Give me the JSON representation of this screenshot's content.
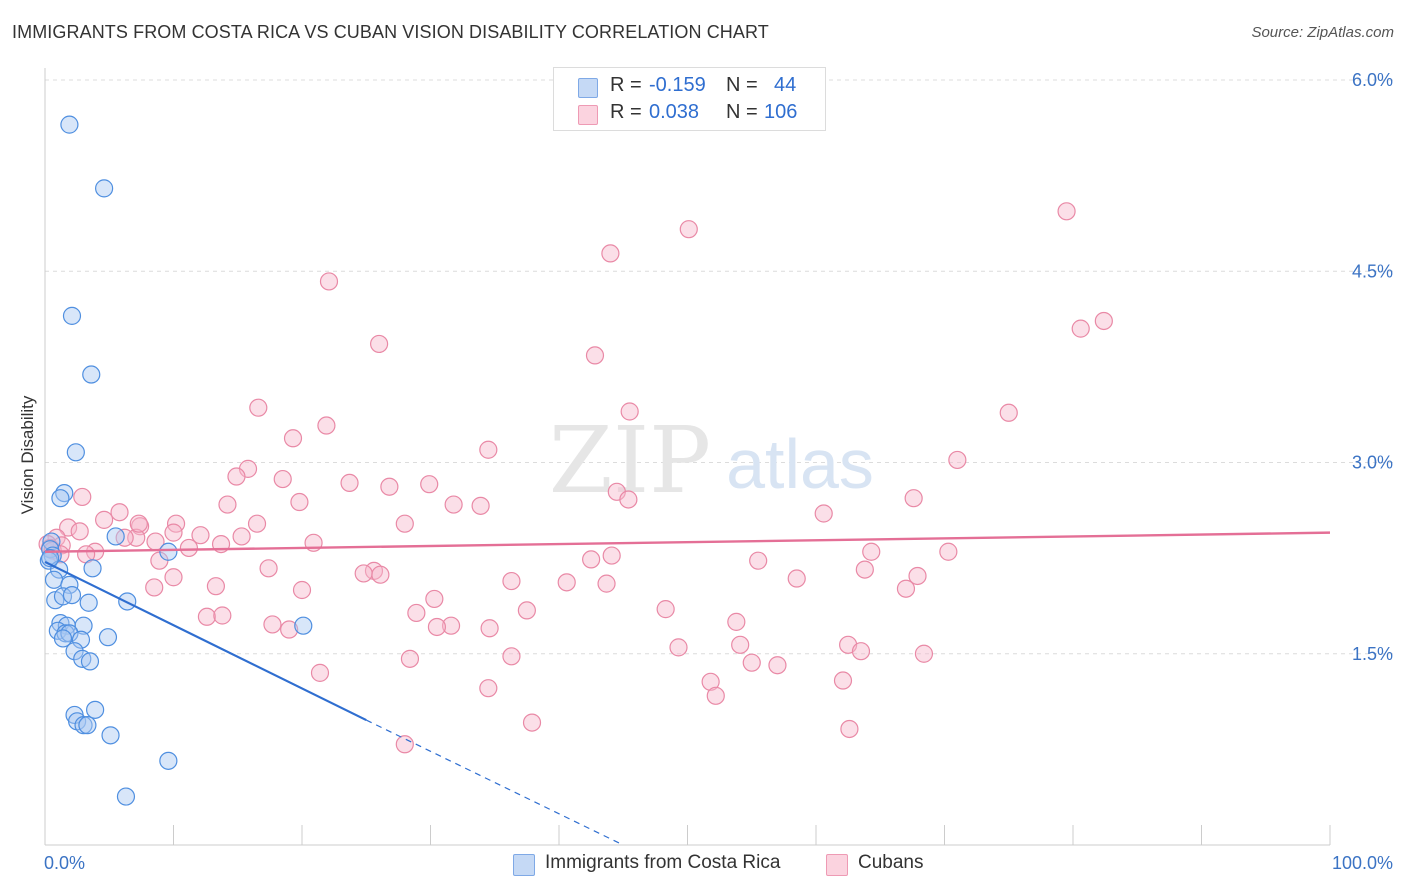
{
  "header": {
    "title": "IMMIGRANTS FROM COSTA RICA VS CUBAN VISION DISABILITY CORRELATION CHART",
    "source": "Source: ZipAtlas.com"
  },
  "legend": {
    "rows": [
      {
        "r_label": "R =",
        "r_value": "-0.159",
        "n_label": "N =",
        "n_value": "44",
        "color": "#a9c8f2"
      },
      {
        "r_label": "R =",
        "r_value": "0.038",
        "n_label": "N =",
        "n_value": "106",
        "color": "#f6b9cb"
      }
    ]
  },
  "bottom_legend": [
    {
      "label": "Immigrants from Costa Rica",
      "color": "#a9c8f2"
    },
    {
      "label": "Cubans",
      "color": "#f6b9cb"
    }
  ],
  "watermark": {
    "zip": "ZIP",
    "atlas": "atlas"
  },
  "colors": {
    "blue": "#4f8fe0",
    "blue_fill": "#a9c8f2",
    "blue_line": "#2f6ed0",
    "pink": "#e989a6",
    "pink_fill": "#f6b9cb",
    "pink_line": "#e46f96",
    "grid": "#dcdcdc",
    "tick_label": "#3b73c4"
  },
  "chart_data": {
    "type": "scatter",
    "title": "IMMIGRANTS FROM COSTA RICA VS CUBAN VISION DISABILITY CORRELATION CHART",
    "ylabel": "Vision Disability",
    "xlabel": "",
    "xlim": [
      0,
      100
    ],
    "ylim": [
      0,
      6.0
    ],
    "x_tick_labels": [
      "0.0%",
      "100.0%"
    ],
    "y_ticks": [
      1.5,
      3.0,
      4.5,
      6.0
    ],
    "y_tick_labels": [
      "1.5%",
      "3.0%",
      "4.5%",
      "6.0%"
    ],
    "grid": "horizontal dashed",
    "legend_position": "top-center",
    "series": [
      {
        "name": "Immigrants from Costa Rica",
        "color": "#4f8fe0",
        "r": -0.159,
        "n": 44,
        "trend": {
          "x": [
            0,
            25.0
          ],
          "y": [
            2.22,
            0.98
          ],
          "dashed_to": [
            45.0,
            0.0
          ]
        },
        "points": [
          [
            1.9,
            5.65
          ],
          [
            4.6,
            5.15
          ],
          [
            2.1,
            4.15
          ],
          [
            3.6,
            3.69
          ],
          [
            2.4,
            3.08
          ],
          [
            1.5,
            2.76
          ],
          [
            1.2,
            2.72
          ],
          [
            5.5,
            2.42
          ],
          [
            0.5,
            2.38
          ],
          [
            0.4,
            2.32
          ],
          [
            0.6,
            2.27
          ],
          [
            0.3,
            2.23
          ],
          [
            9.6,
            2.3
          ],
          [
            1.1,
            2.16
          ],
          [
            3.7,
            2.17
          ],
          [
            0.7,
            2.08
          ],
          [
            1.9,
            2.04
          ],
          [
            0.8,
            1.92
          ],
          [
            1.4,
            1.95
          ],
          [
            2.1,
            1.96
          ],
          [
            3.4,
            1.9
          ],
          [
            6.4,
            1.91
          ],
          [
            1.2,
            1.74
          ],
          [
            1.7,
            1.72
          ],
          [
            3.0,
            1.72
          ],
          [
            20.1,
            1.72
          ],
          [
            1.0,
            1.68
          ],
          [
            1.6,
            1.66
          ],
          [
            1.9,
            1.66
          ],
          [
            4.9,
            1.63
          ],
          [
            1.4,
            1.62
          ],
          [
            2.8,
            1.61
          ],
          [
            2.3,
            1.52
          ],
          [
            2.9,
            1.46
          ],
          [
            3.5,
            1.44
          ],
          [
            2.3,
            1.02
          ],
          [
            3.9,
            1.06
          ],
          [
            2.5,
            0.97
          ],
          [
            3.0,
            0.94
          ],
          [
            3.3,
            0.94
          ],
          [
            5.1,
            0.86
          ],
          [
            9.6,
            0.66
          ],
          [
            6.3,
            0.38
          ],
          [
            0.4,
            2.25
          ]
        ]
      },
      {
        "name": "Cubans",
        "color": "#e989a6",
        "r": 0.038,
        "n": 106,
        "trend": {
          "x": [
            0,
            100
          ],
          "y": [
            2.3,
            2.45
          ]
        },
        "points": [
          [
            79.5,
            4.97
          ],
          [
            50.1,
            4.83
          ],
          [
            44.0,
            4.64
          ],
          [
            22.1,
            4.42
          ],
          [
            82.4,
            4.11
          ],
          [
            80.6,
            4.05
          ],
          [
            26.0,
            3.93
          ],
          [
            42.8,
            3.84
          ],
          [
            16.6,
            3.43
          ],
          [
            45.5,
            3.4
          ],
          [
            75.0,
            3.39
          ],
          [
            21.9,
            3.29
          ],
          [
            19.3,
            3.19
          ],
          [
            34.5,
            3.1
          ],
          [
            71.0,
            3.02
          ],
          [
            15.8,
            2.95
          ],
          [
            14.9,
            2.89
          ],
          [
            18.5,
            2.87
          ],
          [
            23.7,
            2.84
          ],
          [
            26.8,
            2.81
          ],
          [
            29.9,
            2.83
          ],
          [
            44.5,
            2.77
          ],
          [
            45.4,
            2.71
          ],
          [
            67.6,
            2.72
          ],
          [
            2.9,
            2.73
          ],
          [
            19.8,
            2.69
          ],
          [
            14.2,
            2.67
          ],
          [
            31.8,
            2.67
          ],
          [
            33.9,
            2.66
          ],
          [
            5.8,
            2.61
          ],
          [
            60.6,
            2.6
          ],
          [
            4.6,
            2.55
          ],
          [
            16.5,
            2.52
          ],
          [
            28.0,
            2.52
          ],
          [
            10.2,
            2.52
          ],
          [
            7.4,
            2.5
          ],
          [
            1.8,
            2.49
          ],
          [
            2.7,
            2.46
          ],
          [
            10.0,
            2.45
          ],
          [
            12.1,
            2.43
          ],
          [
            7.1,
            2.41
          ],
          [
            15.3,
            2.42
          ],
          [
            0.9,
            2.41
          ],
          [
            0.2,
            2.36
          ],
          [
            1.3,
            2.35
          ],
          [
            0.4,
            2.33
          ],
          [
            13.7,
            2.36
          ],
          [
            20.9,
            2.37
          ],
          [
            8.6,
            2.38
          ],
          [
            11.2,
            2.33
          ],
          [
            0.6,
            2.31
          ],
          [
            1.2,
            2.28
          ],
          [
            3.9,
            2.3
          ],
          [
            3.2,
            2.28
          ],
          [
            64.3,
            2.3
          ],
          [
            70.3,
            2.3
          ],
          [
            42.5,
            2.24
          ],
          [
            44.1,
            2.27
          ],
          [
            55.5,
            2.23
          ],
          [
            17.4,
            2.17
          ],
          [
            8.9,
            2.23
          ],
          [
            25.6,
            2.15
          ],
          [
            63.8,
            2.16
          ],
          [
            24.8,
            2.13
          ],
          [
            26.1,
            2.12
          ],
          [
            10.0,
            2.1
          ],
          [
            67.9,
            2.11
          ],
          [
            58.5,
            2.09
          ],
          [
            36.3,
            2.07
          ],
          [
            40.6,
            2.06
          ],
          [
            43.7,
            2.05
          ],
          [
            13.3,
            2.03
          ],
          [
            20.0,
            2.0
          ],
          [
            8.5,
            2.02
          ],
          [
            67.0,
            2.01
          ],
          [
            30.3,
            1.93
          ],
          [
            37.5,
            1.84
          ],
          [
            48.3,
            1.85
          ],
          [
            28.9,
            1.82
          ],
          [
            12.6,
            1.79
          ],
          [
            13.8,
            1.8
          ],
          [
            53.8,
            1.75
          ],
          [
            17.7,
            1.73
          ],
          [
            31.6,
            1.72
          ],
          [
            34.6,
            1.7
          ],
          [
            19.0,
            1.69
          ],
          [
            30.5,
            1.71
          ],
          [
            62.5,
            1.57
          ],
          [
            54.1,
            1.57
          ],
          [
            49.3,
            1.55
          ],
          [
            63.5,
            1.52
          ],
          [
            68.4,
            1.5
          ],
          [
            36.3,
            1.48
          ],
          [
            28.4,
            1.46
          ],
          [
            55.0,
            1.43
          ],
          [
            57.0,
            1.41
          ],
          [
            21.4,
            1.35
          ],
          [
            51.8,
            1.28
          ],
          [
            62.1,
            1.29
          ],
          [
            34.5,
            1.23
          ],
          [
            52.2,
            1.17
          ],
          [
            37.9,
            0.96
          ],
          [
            62.6,
            0.91
          ],
          [
            28.0,
            0.79
          ],
          [
            7.3,
            2.52
          ],
          [
            6.2,
            2.41
          ]
        ]
      }
    ]
  }
}
